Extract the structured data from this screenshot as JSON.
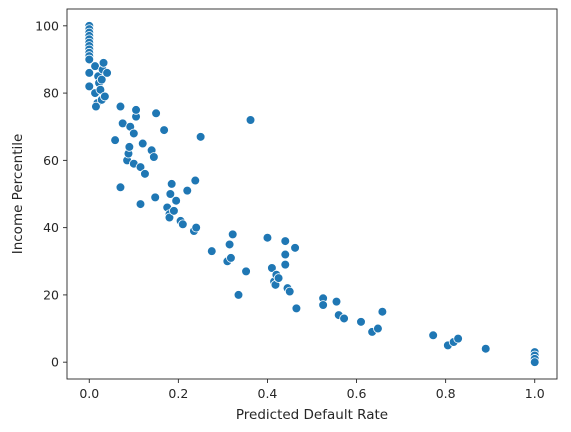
{
  "chart_data": {
    "type": "scatter",
    "title": "",
    "xlabel": "Predicted Default Rate",
    "ylabel": "Income Percentile",
    "xlim": [
      -0.05,
      1.05
    ],
    "ylim": [
      -5,
      105
    ],
    "xticks": [
      0.0,
      0.2,
      0.4,
      0.6,
      0.8,
      1.0
    ],
    "xtick_labels": [
      "0.0",
      "0.2",
      "0.4",
      "0.6",
      "0.8",
      "1.0"
    ],
    "yticks": [
      0,
      20,
      40,
      60,
      80,
      100
    ],
    "ytick_labels": [
      "0",
      "20",
      "40",
      "60",
      "80",
      "100"
    ],
    "grid": false,
    "legend": "none",
    "marker_color": "#1f77b4",
    "marker_edge_color": "#ffffff",
    "points": [
      [
        0.0,
        100
      ],
      [
        0.0,
        99
      ],
      [
        0.0,
        98
      ],
      [
        0.0,
        97
      ],
      [
        0.0,
        96
      ],
      [
        0.0,
        95
      ],
      [
        0.0,
        94
      ],
      [
        0.0,
        93
      ],
      [
        0.0,
        92
      ],
      [
        0.0,
        91
      ],
      [
        0.0,
        90
      ],
      [
        0.0,
        86
      ],
      [
        0.0,
        82
      ],
      [
        0.013,
        80
      ],
      [
        0.013,
        88
      ],
      [
        0.018,
        77
      ],
      [
        0.02,
        85
      ],
      [
        0.022,
        83
      ],
      [
        0.025,
        81
      ],
      [
        0.028,
        78
      ],
      [
        0.028,
        84
      ],
      [
        0.03,
        87
      ],
      [
        0.032,
        89
      ],
      [
        0.035,
        79
      ],
      [
        0.04,
        86
      ],
      [
        0.015,
        76
      ],
      [
        0.058,
        66
      ],
      [
        0.07,
        76
      ],
      [
        0.07,
        52
      ],
      [
        0.075,
        71
      ],
      [
        0.085,
        60
      ],
      [
        0.088,
        62
      ],
      [
        0.09,
        64
      ],
      [
        0.092,
        70
      ],
      [
        0.1,
        68
      ],
      [
        0.1,
        59
      ],
      [
        0.105,
        73
      ],
      [
        0.105,
        75
      ],
      [
        0.115,
        58
      ],
      [
        0.115,
        47
      ],
      [
        0.12,
        65
      ],
      [
        0.125,
        56
      ],
      [
        0.14,
        63
      ],
      [
        0.145,
        61
      ],
      [
        0.148,
        49
      ],
      [
        0.15,
        74
      ],
      [
        0.168,
        69
      ],
      [
        0.175,
        46
      ],
      [
        0.18,
        44
      ],
      [
        0.18,
        43
      ],
      [
        0.182,
        50
      ],
      [
        0.185,
        53
      ],
      [
        0.19,
        45
      ],
      [
        0.195,
        48
      ],
      [
        0.205,
        42
      ],
      [
        0.21,
        41
      ],
      [
        0.22,
        51
      ],
      [
        0.235,
        39
      ],
      [
        0.238,
        54
      ],
      [
        0.24,
        40
      ],
      [
        0.25,
        67
      ],
      [
        0.275,
        33
      ],
      [
        0.31,
        30
      ],
      [
        0.315,
        35
      ],
      [
        0.318,
        31
      ],
      [
        0.322,
        38
      ],
      [
        0.335,
        20
      ],
      [
        0.352,
        27
      ],
      [
        0.362,
        72
      ],
      [
        0.4,
        37
      ],
      [
        0.41,
        28
      ],
      [
        0.415,
        24
      ],
      [
        0.418,
        23
      ],
      [
        0.42,
        26
      ],
      [
        0.425,
        25
      ],
      [
        0.44,
        36
      ],
      [
        0.44,
        32
      ],
      [
        0.44,
        29
      ],
      [
        0.445,
        22
      ],
      [
        0.45,
        21
      ],
      [
        0.462,
        34
      ],
      [
        0.465,
        16
      ],
      [
        0.525,
        19
      ],
      [
        0.525,
        17
      ],
      [
        0.555,
        18
      ],
      [
        0.56,
        14
      ],
      [
        0.572,
        13
      ],
      [
        0.61,
        12
      ],
      [
        0.635,
        9
      ],
      [
        0.648,
        10
      ],
      [
        0.658,
        15
      ],
      [
        0.772,
        8
      ],
      [
        0.805,
        5
      ],
      [
        0.818,
        6
      ],
      [
        0.828,
        7
      ],
      [
        0.89,
        4
      ],
      [
        1.0,
        3
      ],
      [
        1.0,
        2
      ],
      [
        1.0,
        1
      ],
      [
        1.0,
        0
      ]
    ]
  }
}
